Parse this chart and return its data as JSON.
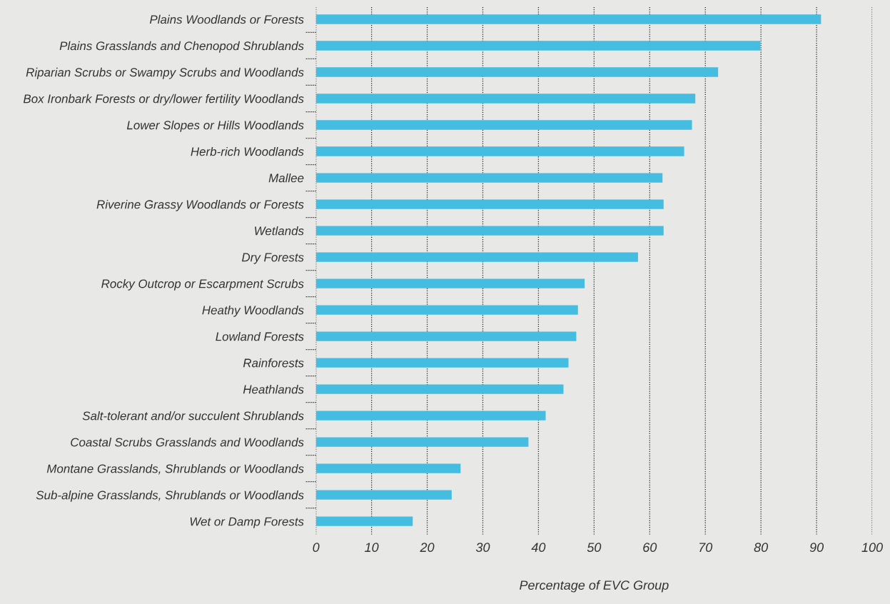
{
  "chart_data": {
    "type": "bar",
    "orientation": "horizontal",
    "xlabel": "Percentage of EVC Group",
    "categories": [
      "Plains Woodlands or Forests",
      "Plains Grasslands and Chenopod Shrublands",
      "Riparian Scrubs or Swampy Scrubs and Woodlands",
      "Box Ironbark Forests or dry/lower fertility Woodlands",
      "Lower Slopes or Hills Woodlands",
      "Herb-rich Woodlands",
      "Mallee",
      "Riverine Grassy Woodlands or Forests",
      "Wetlands",
      "Dry Forests",
      "Rocky Outcrop or Escarpment Scrubs",
      "Heathy Woodlands",
      "Lowland Forests",
      "Rainforests",
      "Heathlands",
      "Salt-tolerant and/or succulent Shrublands",
      "Coastal Scrubs Grasslands and Woodlands",
      "Montane Grasslands, Shrublands or Woodlands",
      "Sub-alpine Grasslands, Shrublands or Woodlands",
      "Wet or Damp Forests"
    ],
    "values": [
      90.8,
      79.9,
      72.3,
      68.2,
      67.6,
      66.2,
      62.3,
      62.5,
      62.5,
      57.9,
      48.3,
      47.1,
      46.8,
      45.4,
      44.5,
      41.3,
      38.2,
      26.0,
      24.4,
      17.4
    ],
    "color": "#45bde0",
    "xlim": [
      0,
      100
    ],
    "xticks": [
      0,
      10,
      20,
      30,
      40,
      50,
      60,
      70,
      80,
      90,
      100
    ],
    "grid": "x"
  }
}
